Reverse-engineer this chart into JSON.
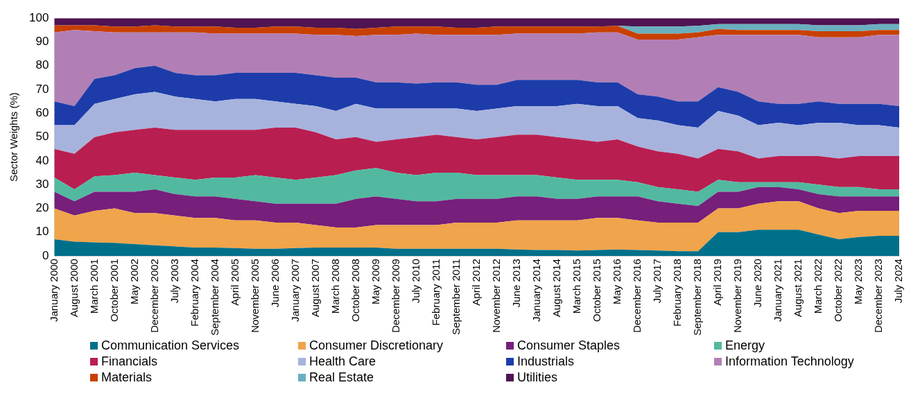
{
  "chart_data": {
    "type": "area",
    "stacked": true,
    "ylabel": "Sector Weights (%)",
    "ylim": [
      0,
      100
    ],
    "yticks": [
      0,
      10,
      20,
      30,
      40,
      50,
      60,
      70,
      80,
      90,
      100
    ],
    "grid": false,
    "legend": "bottom",
    "categories": [
      "January 2000",
      "August 2000",
      "March 2001",
      "October 2001",
      "May 2002",
      "December 2002",
      "July 2003",
      "February 2004",
      "September 2004",
      "April 2005",
      "November 2005",
      "June 2006",
      "January 2007",
      "August 2007",
      "March 2008",
      "October 2008",
      "May 2009",
      "December 2009",
      "July 2010",
      "February 2011",
      "September 2011",
      "April 2012",
      "November 2012",
      "June 2013",
      "January 2014",
      "August 2014",
      "March 2015",
      "October 2015",
      "May 2016",
      "December 2016",
      "July 2017",
      "February 2018",
      "September 2018",
      "April 2019",
      "November 2019",
      "June 2020",
      "January 2021",
      "August 2021",
      "March 2022",
      "October 2022",
      "May 2023",
      "December 2023",
      "July 2024"
    ],
    "series": [
      {
        "name": "Communication Services",
        "color": "#00708a",
        "values": [
          7,
          6,
          5.7,
          5.5,
          5,
          4.5,
          4,
          3.5,
          3.5,
          3.3,
          3,
          3,
          3.3,
          3.5,
          3.5,
          3.5,
          3.5,
          3,
          3,
          3,
          3,
          3,
          3,
          2.7,
          2.5,
          2.5,
          2.3,
          2.5,
          2.7,
          2.5,
          2.3,
          2,
          2,
          10,
          10,
          11,
          11,
          11,
          9,
          7,
          8,
          8.5,
          8.5
        ]
      },
      {
        "name": "Consumer Discretionary",
        "color": "#f0a44b",
        "values": [
          13,
          11,
          13.3,
          14.5,
          13,
          13.5,
          13,
          12.5,
          12.5,
          11.7,
          12,
          11,
          10.7,
          9.5,
          8.5,
          8.5,
          9.5,
          10,
          10,
          10,
          11,
          11,
          11,
          12.3,
          12.5,
          12.5,
          12.7,
          13.5,
          13.3,
          12.5,
          11.7,
          12,
          12,
          10,
          10,
          11,
          12,
          12,
          11,
          11,
          11,
          10.5,
          10.5
        ]
      },
      {
        "name": "Consumer Staples",
        "color": "#761f7b",
        "values": [
          7,
          6,
          8,
          7,
          9,
          10,
          9,
          9,
          9,
          9,
          8,
          8,
          8,
          9,
          10,
          12,
          12,
          11,
          10,
          10,
          10,
          10,
          10,
          10,
          10,
          9,
          9,
          9,
          9,
          10,
          9,
          8,
          7,
          7,
          7,
          7,
          6,
          5,
          6,
          7,
          6,
          6,
          6
        ]
      },
      {
        "name": "Energy",
        "color": "#52b9a0",
        "values": [
          6,
          5,
          6.5,
          7,
          8,
          6,
          7,
          7,
          8,
          9,
          11,
          11,
          10,
          11,
          12,
          12,
          12,
          11,
          11,
          12,
          11,
          10,
          10,
          9,
          9,
          9,
          8,
          7,
          7,
          6,
          6,
          6,
          6,
          5,
          4,
          2,
          2,
          3,
          4,
          4,
          4,
          3,
          3
        ]
      },
      {
        "name": "Financials",
        "color": "#b81f50",
        "values": [
          12,
          15,
          16.5,
          18,
          18,
          20,
          20,
          21,
          20,
          20,
          19,
          21,
          22,
          19,
          15,
          14,
          11,
          14,
          16,
          16,
          15,
          15,
          16,
          17,
          17,
          17,
          17,
          16,
          17,
          15,
          15,
          15,
          14,
          13,
          13,
          10,
          11,
          11,
          12,
          12,
          13,
          14,
          14
        ]
      },
      {
        "name": "Health Care",
        "color": "#a7b3dd",
        "values": [
          10,
          12,
          14,
          14,
          15,
          15,
          14,
          13,
          12,
          13,
          13,
          11,
          10,
          11,
          12,
          14,
          14,
          13,
          12,
          11,
          12,
          12,
          12,
          12,
          12,
          13,
          15,
          15,
          14,
          12,
          13,
          12,
          13,
          16,
          15,
          14,
          14,
          13,
          14,
          15,
          13,
          13,
          12
        ]
      },
      {
        "name": "Industrials",
        "color": "#1d3caa",
        "values": [
          10,
          8,
          10.5,
          10,
          11,
          11,
          10,
          10,
          11,
          11,
          11,
          12,
          13,
          13,
          14,
          11,
          11,
          11,
          10.5,
          11,
          11,
          11,
          10,
          11,
          11,
          11,
          10,
          10,
          10,
          10,
          10,
          10,
          11,
          10,
          10,
          10,
          8,
          9,
          9,
          8,
          9,
          9,
          9
        ]
      },
      {
        "name": "Information Technology",
        "color": "#b17fb5",
        "values": [
          29,
          32,
          20,
          18,
          15,
          14,
          17,
          18,
          17.5,
          16.5,
          16.5,
          16.5,
          16.5,
          17,
          18,
          17.5,
          20,
          20,
          21,
          20,
          20,
          21,
          21,
          19.5,
          19.5,
          19.5,
          19.5,
          21,
          21,
          23,
          24,
          26,
          27,
          22,
          24,
          28,
          29,
          29,
          27,
          28,
          28,
          29,
          30
        ]
      },
      {
        "name": "Materials",
        "color": "#c84000",
        "values": [
          3,
          2,
          2.5,
          2.5,
          2.5,
          3,
          2.5,
          2.5,
          3,
          2.5,
          2.5,
          3,
          3,
          3,
          3,
          3,
          3,
          3.5,
          3,
          3.5,
          3,
          3,
          3.5,
          3,
          3,
          3,
          3,
          2.5,
          2.8,
          2.5,
          2.5,
          2.5,
          2,
          2.5,
          2,
          2,
          2,
          2,
          2.5,
          2.5,
          2.5,
          2,
          2
        ]
      },
      {
        "name": "Real Estate",
        "color": "#6aafbf",
        "values": [
          0,
          0,
          0,
          0,
          0,
          0,
          0,
          0,
          0,
          0,
          0,
          0,
          0,
          0,
          0,
          0,
          0,
          0,
          0,
          0,
          0,
          0,
          0,
          0,
          0,
          0,
          0,
          0,
          0,
          3,
          3,
          3,
          2.8,
          2,
          2.5,
          2.5,
          2.5,
          2.5,
          2.5,
          2.5,
          2.5,
          2.5,
          2.5
        ]
      },
      {
        "name": "Utilities",
        "color": "#4f1452",
        "values": [
          3,
          3,
          3,
          3.5,
          3.5,
          3,
          3.5,
          3.5,
          3.5,
          4,
          4,
          3.5,
          3.5,
          4,
          4,
          4.5,
          4,
          3.5,
          3.5,
          3.5,
          4,
          4,
          3.5,
          3.5,
          3.5,
          3.5,
          3.5,
          3.5,
          3.2,
          3.5,
          3.5,
          3.5,
          3.2,
          2.5,
          2.5,
          2.5,
          2.5,
          2.5,
          3,
          3,
          3,
          2.5,
          2.5
        ]
      }
    ]
  }
}
